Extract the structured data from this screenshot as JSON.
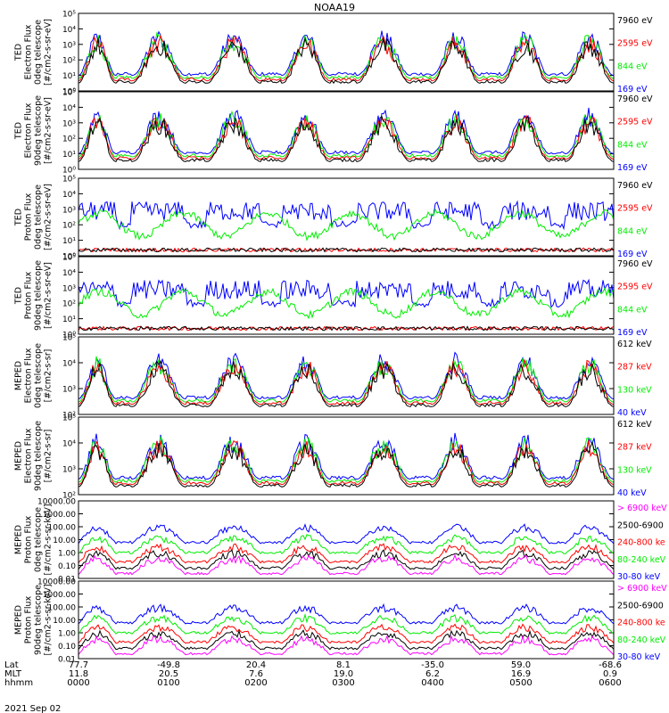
{
  "title": "NOAA19",
  "date": "2021 Sep 02",
  "colors": {
    "black": "#000000",
    "red": "#ff0000",
    "green": "#00ee00",
    "blue": "#0000ff",
    "magenta": "#ff00ff"
  },
  "footer": {
    "row_labels": [
      "Lat",
      "MLT",
      "hhmm"
    ],
    "columns": [
      {
        "lat": "77.7",
        "mlt": "11.8",
        "hhmm": "0000"
      },
      {
        "lat": "-49.8",
        "mlt": "20.5",
        "hhmm": "0100"
      },
      {
        "lat": "20.4",
        "mlt": "7.6",
        "hhmm": "0200"
      },
      {
        "lat": "8.1",
        "mlt": "19.0",
        "hhmm": "0300"
      },
      {
        "lat": "-35.0",
        "mlt": "6.2",
        "hhmm": "0400"
      },
      {
        "lat": "59.0",
        "mlt": "16.9",
        "hhmm": "0500"
      },
      {
        "lat": "-68.6",
        "mlt": "0.9",
        "hhmm": "0600"
      }
    ]
  },
  "chart_data": [
    {
      "type": "line",
      "ylabel": [
        "TED",
        "Electron Flux",
        "0deg telescope",
        "[#/cm2-s-sr-eV]"
      ],
      "yscale": "log",
      "ylim": [
        1,
        100000
      ],
      "ticks": [
        "10⁰",
        "10¹",
        "10²",
        "10³",
        "10⁴",
        "10⁵"
      ],
      "series": [
        {
          "name": "7960 eV",
          "color": "#000000"
        },
        {
          "name": "2595 eV",
          "color": "#ff0000"
        },
        {
          "name": "844 eV",
          "color": "#00ee00"
        },
        {
          "name": "169 eV",
          "color": "#0000ff"
        }
      ]
    },
    {
      "type": "line",
      "ylabel": [
        "TED",
        "Electron Flux",
        "90deg telescope",
        "[#/cm2-s-sr-eV]"
      ],
      "yscale": "log",
      "ylim": [
        1,
        100000
      ],
      "ticks": [
        "10⁰",
        "10¹",
        "10²",
        "10³",
        "10⁴",
        "10⁵"
      ],
      "series": [
        {
          "name": "7960 eV",
          "color": "#000000"
        },
        {
          "name": "2595 eV",
          "color": "#ff0000"
        },
        {
          "name": "844 eV",
          "color": "#00ee00"
        },
        {
          "name": "169 eV",
          "color": "#0000ff"
        }
      ]
    },
    {
      "type": "line",
      "ylabel": [
        "TED",
        "Proton Flux",
        "0deg telescope",
        "[#/cm2-s-sr-eV]"
      ],
      "yscale": "log",
      "ylim": [
        1,
        100000
      ],
      "ticks": [
        "10⁰",
        "10¹",
        "10²",
        "10³",
        "10⁴",
        "10⁵"
      ],
      "series": [
        {
          "name": "7960 eV",
          "color": "#000000"
        },
        {
          "name": "2595 eV",
          "color": "#ff0000"
        },
        {
          "name": "844 eV",
          "color": "#00ee00"
        },
        {
          "name": "169 eV",
          "color": "#0000ff"
        }
      ]
    },
    {
      "type": "line",
      "ylabel": [
        "TED",
        "Proton Flux",
        "90deg telescope",
        "[#/cm2-s-sr-eV]"
      ],
      "yscale": "log",
      "ylim": [
        1,
        100000
      ],
      "ticks": [
        "10⁰",
        "10¹",
        "10²",
        "10³",
        "10⁴",
        "10⁵"
      ],
      "series": [
        {
          "name": "7960 eV",
          "color": "#000000"
        },
        {
          "name": "2595 eV",
          "color": "#ff0000"
        },
        {
          "name": "844 eV",
          "color": "#00ee00"
        },
        {
          "name": "169 eV",
          "color": "#0000ff"
        }
      ]
    },
    {
      "type": "line",
      "ylabel": [
        "MEPED",
        "Electron Flux",
        "0deg telescope",
        "[#/cm2-s-sr]"
      ],
      "yscale": "log",
      "ylim": [
        100,
        100000
      ],
      "ticks": [
        "10²",
        "10³",
        "10⁴",
        "10⁵"
      ],
      "series": [
        {
          "name": "612 keV",
          "color": "#000000"
        },
        {
          "name": "287 keV",
          "color": "#ff0000"
        },
        {
          "name": "130 keV",
          "color": "#00ee00"
        },
        {
          "name": "40 keV",
          "color": "#0000ff"
        }
      ]
    },
    {
      "type": "line",
      "ylabel": [
        "MEPED",
        "Electron Flux",
        "90deg telescope",
        "[#/cm2-s-sr]"
      ],
      "yscale": "log",
      "ylim": [
        100,
        100000
      ],
      "ticks": [
        "10²",
        "10³",
        "10⁴",
        "10⁵"
      ],
      "series": [
        {
          "name": "612 keV",
          "color": "#000000"
        },
        {
          "name": "287 keV",
          "color": "#ff0000"
        },
        {
          "name": "130 keV",
          "color": "#00ee00"
        },
        {
          "name": "40 keV",
          "color": "#0000ff"
        }
      ]
    },
    {
      "type": "line",
      "ylabel": [
        "MEPED",
        "Proton Flux",
        "0deg telescope",
        "[#/cm2-s-sr-keV]"
      ],
      "yscale": "log",
      "ylim": [
        0.01,
        10000
      ],
      "ticks": [
        "0.01",
        "0.10",
        "1.00",
        "10.00",
        "100.00",
        "1000.00",
        "10000.00"
      ],
      "series": [
        {
          "name": "> 6900 keV",
          "color": "#ff00ff"
        },
        {
          "name": "2500-6900",
          "color": "#000000"
        },
        {
          "name": "240-800 ke",
          "color": "#ff0000"
        },
        {
          "name": "80-240 keV",
          "color": "#00ee00"
        },
        {
          "name": "30-80 keV",
          "color": "#0000ff"
        }
      ]
    },
    {
      "type": "line",
      "ylabel": [
        "MEPED",
        "Proton Flux",
        "90deg telescope",
        "[#/cm2-s-sr-keV]"
      ],
      "yscale": "log",
      "ylim": [
        0.01,
        10000
      ],
      "ticks": [
        "0.01",
        "0.10",
        "1.00",
        "10.00",
        "100.00",
        "1000.00",
        "10000.00"
      ],
      "series": [
        {
          "name": "> 6900 keV",
          "color": "#ff00ff"
        },
        {
          "name": "2500-6900",
          "color": "#000000"
        },
        {
          "name": "240-800 ke",
          "color": "#ff0000"
        },
        {
          "name": "80-240 keV",
          "color": "#00ee00"
        },
        {
          "name": "30-80 keV",
          "color": "#0000ff"
        }
      ]
    }
  ]
}
